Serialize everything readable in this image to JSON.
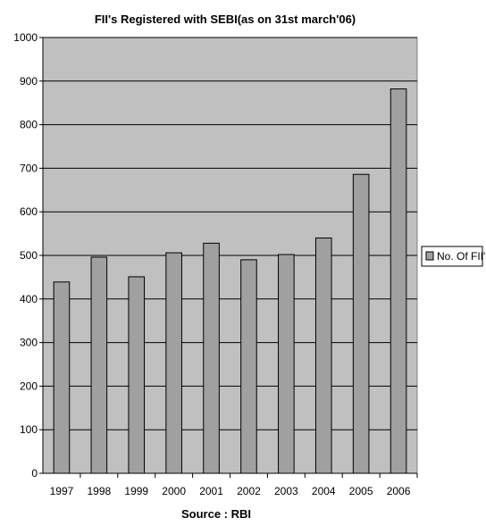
{
  "chart_data": {
    "type": "bar",
    "title": "FII's Registered with SEBI(as on 31st march'06)",
    "xlabel": "Source : RBI",
    "ylabel": "",
    "categories": [
      "1997",
      "1998",
      "1999",
      "2000",
      "2001",
      "2002",
      "2003",
      "2004",
      "2005",
      "2006"
    ],
    "series": [
      {
        "name": "No. Of FII's",
        "values": [
          439,
          496,
          451,
          506,
          528,
          490,
          502,
          540,
          686,
          882
        ]
      }
    ],
    "ylim": [
      0,
      1000
    ],
    "yticks": [
      "0",
      "100",
      "200",
      "300",
      "400",
      "500",
      "600",
      "700",
      "800",
      "900",
      "1000"
    ],
    "grid": true,
    "legend": "right",
    "colors": {
      "plot_bg": "#c0c0c0",
      "bar": "#a0a0a0",
      "bar_stroke": "#000000",
      "grid": "#000000"
    }
  }
}
